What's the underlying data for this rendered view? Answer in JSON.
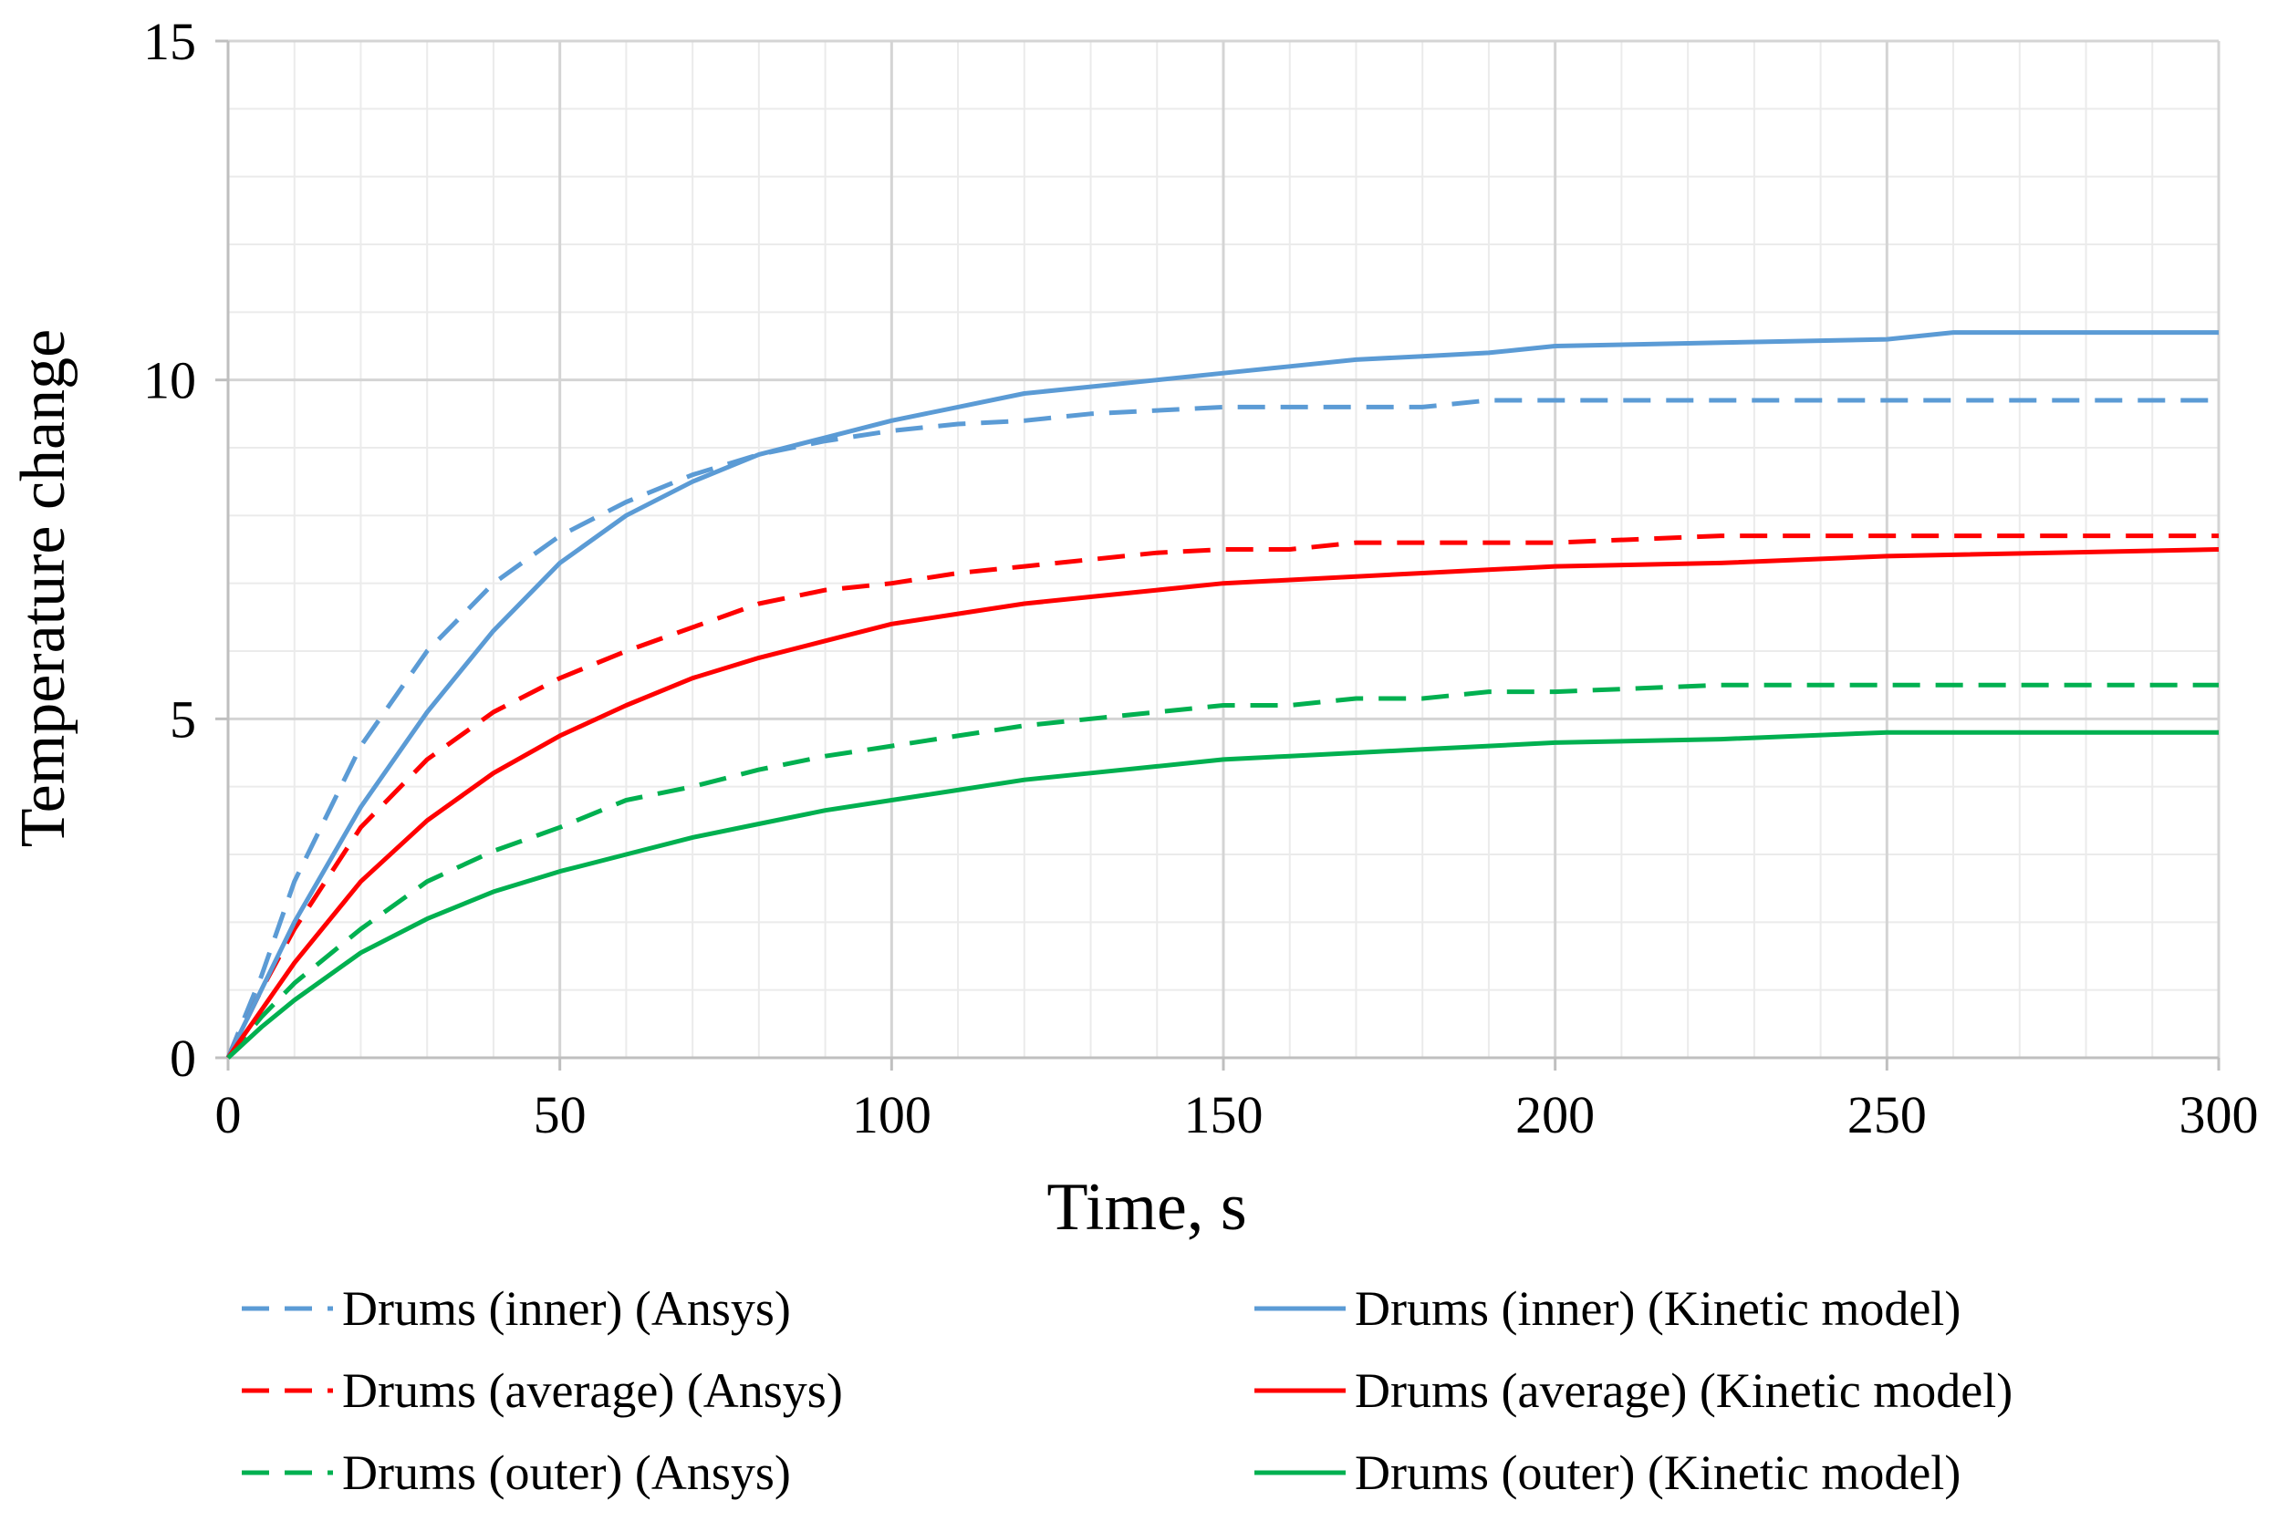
{
  "chart_data": {
    "type": "line",
    "title": "",
    "xlabel": "Time, s",
    "ylabel": "Temperature change",
    "xlim": [
      0,
      300
    ],
    "ylim": [
      0,
      15
    ],
    "xticks": [
      0,
      50,
      100,
      150,
      200,
      250,
      300
    ],
    "yticks": [
      0,
      5,
      10,
      15
    ],
    "grid": true,
    "minor_grid": true,
    "legend_position": "bottom",
    "series": [
      {
        "name": "Drums (inner) (Ansys)",
        "color": "#5b9bd5",
        "dash": "dashed",
        "x": [
          0,
          5,
          10,
          20,
          30,
          40,
          50,
          60,
          70,
          80,
          90,
          100,
          110,
          120,
          130,
          140,
          150,
          160,
          170,
          180,
          190,
          200,
          250,
          300
        ],
        "y": [
          0,
          1.2,
          2.6,
          4.6,
          6.0,
          7.0,
          7.7,
          8.2,
          8.6,
          8.9,
          9.1,
          9.25,
          9.35,
          9.4,
          9.5,
          9.55,
          9.6,
          9.6,
          9.6,
          9.6,
          9.7,
          9.7,
          9.7,
          9.7
        ]
      },
      {
        "name": "Drums (average) (Ansys)",
        "color": "#ff0000",
        "dash": "dashed",
        "x": [
          0,
          5,
          10,
          20,
          30,
          40,
          50,
          60,
          70,
          80,
          90,
          100,
          110,
          120,
          130,
          140,
          150,
          160,
          170,
          180,
          190,
          200,
          225,
          250,
          300
        ],
        "y": [
          0,
          1.0,
          1.9,
          3.4,
          4.4,
          5.1,
          5.6,
          6.0,
          6.35,
          6.7,
          6.9,
          7.0,
          7.15,
          7.25,
          7.35,
          7.45,
          7.5,
          7.5,
          7.6,
          7.6,
          7.6,
          7.6,
          7.7,
          7.7,
          7.7
        ]
      },
      {
        "name": "Drums (outer) (Ansys)",
        "color": "#00b050",
        "dash": "dashed",
        "x": [
          0,
          5,
          10,
          20,
          30,
          40,
          50,
          60,
          70,
          80,
          90,
          100,
          110,
          120,
          130,
          140,
          150,
          160,
          170,
          180,
          190,
          200,
          225,
          250,
          300
        ],
        "y": [
          0,
          0.6,
          1.1,
          1.9,
          2.6,
          3.05,
          3.4,
          3.8,
          4.0,
          4.25,
          4.45,
          4.6,
          4.75,
          4.9,
          5.0,
          5.1,
          5.2,
          5.2,
          5.3,
          5.3,
          5.4,
          5.4,
          5.5,
          5.5,
          5.5
        ]
      },
      {
        "name": "Drums (inner) (Kinetic model)",
        "color": "#5b9bd5",
        "dash": "solid",
        "x": [
          0,
          5,
          10,
          20,
          30,
          40,
          50,
          60,
          70,
          80,
          90,
          100,
          110,
          120,
          130,
          140,
          150,
          160,
          170,
          180,
          190,
          200,
          225,
          250,
          260,
          300
        ],
        "y": [
          0,
          1.0,
          2.0,
          3.7,
          5.1,
          6.3,
          7.3,
          8.0,
          8.5,
          8.9,
          9.15,
          9.4,
          9.6,
          9.8,
          9.9,
          10.0,
          10.1,
          10.2,
          10.3,
          10.35,
          10.4,
          10.5,
          10.55,
          10.6,
          10.7,
          10.7
        ]
      },
      {
        "name": "Drums (average) (Kinetic model)",
        "color": "#ff0000",
        "dash": "solid",
        "x": [
          0,
          5,
          10,
          20,
          30,
          40,
          50,
          60,
          70,
          80,
          90,
          100,
          110,
          120,
          130,
          140,
          150,
          160,
          170,
          180,
          190,
          200,
          225,
          250,
          300
        ],
        "y": [
          0,
          0.7,
          1.4,
          2.6,
          3.5,
          4.2,
          4.75,
          5.2,
          5.6,
          5.9,
          6.15,
          6.4,
          6.55,
          6.7,
          6.8,
          6.9,
          7.0,
          7.05,
          7.1,
          7.15,
          7.2,
          7.25,
          7.3,
          7.4,
          7.5
        ]
      },
      {
        "name": "Drums (outer) (Kinetic model)",
        "color": "#00b050",
        "dash": "solid",
        "x": [
          0,
          5,
          10,
          20,
          30,
          40,
          50,
          60,
          70,
          80,
          90,
          100,
          110,
          120,
          130,
          140,
          150,
          160,
          170,
          180,
          190,
          200,
          225,
          250,
          300
        ],
        "y": [
          0,
          0.45,
          0.85,
          1.55,
          2.05,
          2.45,
          2.75,
          3.0,
          3.25,
          3.45,
          3.65,
          3.8,
          3.95,
          4.1,
          4.2,
          4.3,
          4.4,
          4.45,
          4.5,
          4.55,
          4.6,
          4.65,
          4.7,
          4.8,
          4.8
        ]
      }
    ]
  }
}
